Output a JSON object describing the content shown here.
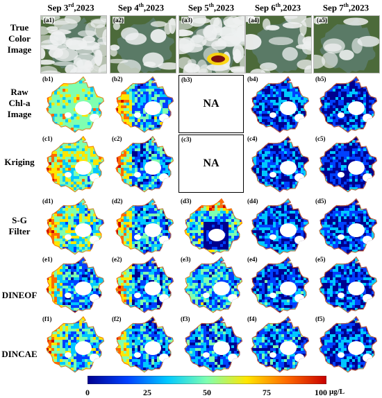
{
  "columns": [
    {
      "base": "Sep 3",
      "sup": "rd",
      "year": ",2023"
    },
    {
      "base": "Sep 4",
      "sup": "th",
      "year": ",2023"
    },
    {
      "base": "Sep 5",
      "sup": "th",
      "year": ",2023"
    },
    {
      "base": "Sep 6",
      "sup": "th",
      "year": ",2023"
    },
    {
      "base": "Sep 7",
      "sup": "th",
      "year": ",2023"
    }
  ],
  "rows": [
    {
      "label_lines": [
        "True",
        "Color",
        "Image"
      ],
      "prefix": "a"
    },
    {
      "label_lines": [
        "Raw",
        "Chl-a",
        "Image"
      ],
      "prefix": "b"
    },
    {
      "label_lines": [
        "Kriging"
      ],
      "prefix": "c"
    },
    {
      "label_lines": [
        "S-G",
        "Filter"
      ],
      "prefix": "d"
    },
    {
      "label_lines": [
        "DINEOF"
      ],
      "prefix": "e"
    },
    {
      "label_lines": [
        "DINCAE"
      ],
      "prefix": "f"
    }
  ],
  "panel_tags": {
    "a1": "(a1)",
    "a2": "(a2)",
    "a3": "(a3)",
    "a4": "(a4)",
    "a5": "(a5)",
    "b1": "(b1)",
    "b2": "(b2)",
    "b3": "(b3)",
    "b4": "(b4)",
    "b5": "(b5)",
    "c1": "(c1)",
    "c2": "(c2)",
    "c3": "(c3)",
    "c4": "(c4)",
    "c5": "(c5)",
    "d1": "(d1)",
    "d2": "(d2)",
    "d3": "(d3)",
    "d4": "(d4)",
    "d5": "(d5)",
    "e1": "(e1)",
    "e2": "(e2)",
    "e3": "(e3)",
    "e4": "(e4)",
    "e5": "(e5)",
    "f1": "(f1)",
    "f2": "(f2)",
    "f3": "(f3)",
    "f4": "(f4)",
    "f5": "(f5)"
  },
  "na_label": "NA",
  "colorbar": {
    "ticks": [
      "0",
      "25",
      "50",
      "75",
      "100"
    ],
    "unit": "μg/L",
    "colors": [
      "#00008f",
      "#0040ff",
      "#00c8ff",
      "#7fffb0",
      "#ffe600",
      "#ff6a00",
      "#c80000"
    ]
  },
  "lake": {
    "water_tint": "#5a7a66",
    "land_tint": "#4c6a3a",
    "cloud": "#eef0f0"
  }
}
